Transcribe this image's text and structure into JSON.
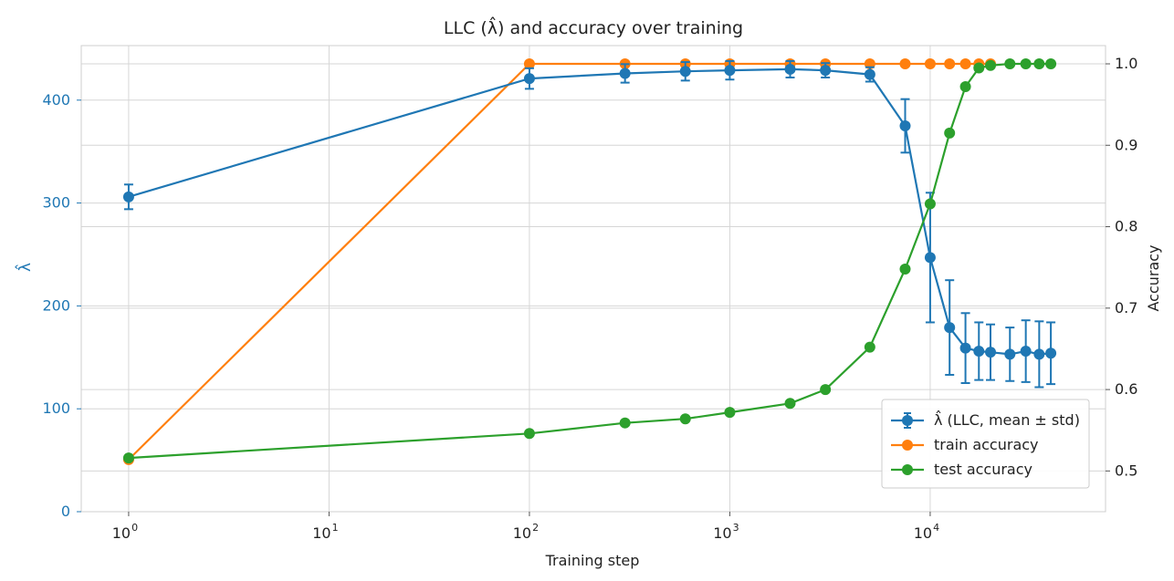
{
  "chart_data": {
    "type": "line",
    "title": "LLC (λ̂) and accuracy over training",
    "xlabel": "Training step",
    "xscale": "log",
    "xlim": [
      0.58,
      75000
    ],
    "x_ticks": [
      {
        "value": 1,
        "base": "10",
        "exp": "0"
      },
      {
        "value": 10,
        "base": "10",
        "exp": "1"
      },
      {
        "value": 100,
        "base": "10",
        "exp": "2"
      },
      {
        "value": 1000,
        "base": "10",
        "exp": "3"
      },
      {
        "value": 10000,
        "base": "10",
        "exp": "4"
      }
    ],
    "y_left": {
      "label": "λ̂",
      "lim": [
        0,
        453
      ],
      "ticks": [
        0,
        100,
        200,
        300,
        400
      ],
      "color": "#1f77b4"
    },
    "y_right": {
      "label": "Accuracy",
      "lim": [
        0.45,
        1.0224
      ],
      "ticks": [
        "0.5",
        "0.6",
        "0.7",
        "0.8",
        "0.9",
        "1.0"
      ]
    },
    "grid": true,
    "legend_position": "lower-right",
    "series": [
      {
        "name": "λ̂ (LLC, mean ± std)",
        "axis": "left",
        "color": "#1f77b4",
        "x": [
          1,
          100,
          300,
          600,
          1000,
          2000,
          3000,
          5000,
          7500,
          10000,
          12500,
          15000,
          17500,
          20000,
          25000,
          30000,
          35000,
          40000
        ],
        "y": [
          306,
          421,
          426,
          428,
          429,
          430,
          429,
          425,
          375,
          247,
          179,
          159,
          156,
          155,
          153,
          156,
          153,
          154
        ],
        "err": [
          12,
          10,
          9,
          9,
          9,
          8,
          7,
          7,
          26,
          63,
          46,
          34,
          28,
          27,
          26,
          30,
          32,
          30
        ]
      },
      {
        "name": "train accuracy",
        "axis": "right",
        "color": "#ff7f0e",
        "x": [
          1,
          100,
          300,
          600,
          1000,
          2000,
          3000,
          5000,
          7500,
          10000,
          12500,
          15000,
          17500,
          20000
        ],
        "y": [
          0.514,
          1.0,
          1.0,
          1.0,
          1.0,
          1.0,
          1.0,
          1.0,
          1.0,
          1.0,
          1.0,
          1.0,
          1.0,
          1.0
        ]
      },
      {
        "name": "test accuracy",
        "axis": "right",
        "color": "#2ca02c",
        "x": [
          1,
          100,
          300,
          600,
          1000,
          2000,
          3000,
          5000,
          7500,
          10000,
          12500,
          15000,
          17500,
          20000,
          25000,
          30000,
          35000,
          40000
        ],
        "y": [
          0.516,
          0.546,
          0.559,
          0.564,
          0.572,
          0.583,
          0.6,
          0.652,
          0.748,
          0.828,
          0.915,
          0.972,
          0.995,
          0.998,
          1.0,
          1.0,
          1.0,
          1.0
        ]
      }
    ]
  }
}
